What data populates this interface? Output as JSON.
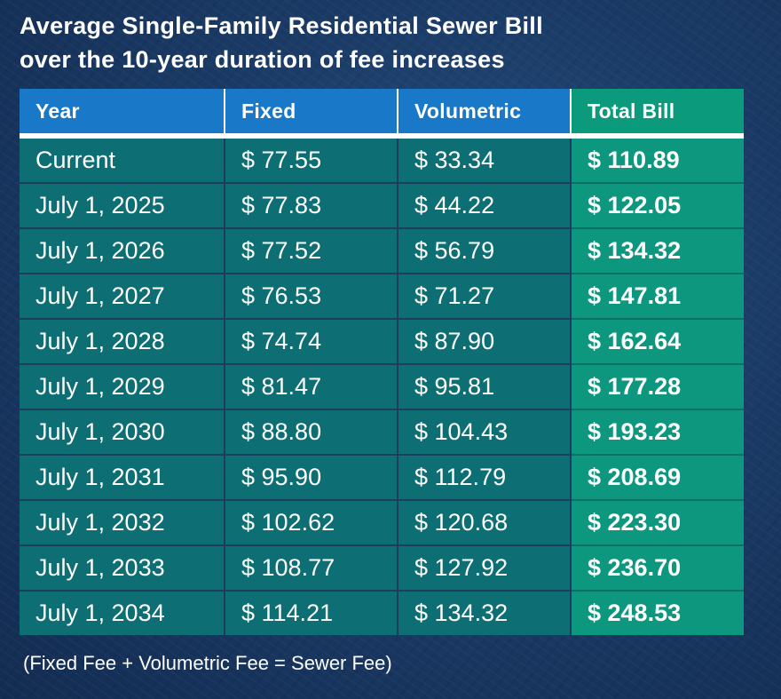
{
  "title": {
    "line1": "Average Single-Family Residential Sewer Bill",
    "line2": "over the 10-year duration of fee increases"
  },
  "chart_data": {
    "type": "table",
    "columns": [
      "Year",
      "Fixed",
      "Volumetric",
      "Total Bill"
    ],
    "rows": [
      [
        "Current",
        "$ 77.55",
        "$ 33.34",
        "$ 110.89"
      ],
      [
        "July 1, 2025",
        "$ 77.83",
        "$ 44.22",
        "$ 122.05"
      ],
      [
        "July 1, 2026",
        "$ 77.52",
        "$ 56.79",
        "$ 134.32"
      ],
      [
        "July 1, 2027",
        "$ 76.53",
        "$ 71.27",
        "$ 147.81"
      ],
      [
        "July 1, 2028",
        "$ 74.74",
        "$ 87.90",
        "$ 162.64"
      ],
      [
        "July 1, 2029",
        "$ 81.47",
        "$ 95.81",
        "$ 177.28"
      ],
      [
        "July 1, 2030",
        "$ 88.80",
        "$ 104.43",
        "$ 193.23"
      ],
      [
        "July 1, 2031",
        "$ 95.90",
        "$ 112.79",
        "$ 208.69"
      ],
      [
        "July 1, 2032",
        "$ 102.62",
        "$ 120.68",
        "$ 223.30"
      ],
      [
        "July 1, 2033",
        "$ 108.77",
        "$ 127.92",
        "$ 236.70"
      ],
      [
        "July 1, 2034",
        "$ 114.21",
        "$ 134.32",
        "$ 248.53"
      ]
    ]
  },
  "footnote": "(Fixed Fee + Volumetric Fee = Sewer Fee)",
  "colors": {
    "background": "#1b3c68",
    "header_blue": "#1a78c8",
    "header_total": "#0b9a7c",
    "cell_teal": "#0d6f73",
    "total_cell": "#0c977e",
    "text": "#ffffff"
  }
}
